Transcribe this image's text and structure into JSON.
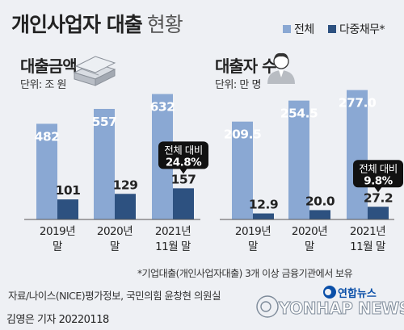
{
  "title": {
    "main": "개인사업자 대출",
    "sub": "현황"
  },
  "legend": [
    {
      "label": "전체",
      "color": "#8aa8d3"
    },
    {
      "label": "다중채무*",
      "color": "#2d5180"
    }
  ],
  "colors": {
    "total": "#8aa8d3",
    "multi": "#2d5180",
    "callout": "#111111"
  },
  "icons": {
    "loan": "money-stack-icon",
    "borrower": "person-icon",
    "logo": "yonhap-logo-icon"
  },
  "chart_data": [
    {
      "type": "bar",
      "title": "대출금액",
      "unit": "단위: 조 원",
      "categories": [
        "2019년 말",
        "2020년 말",
        "2021년 11월 말"
      ],
      "category_lines": [
        [
          "2019년",
          "말"
        ],
        [
          "2020년",
          "말"
        ],
        [
          "2021년",
          "11월 말"
        ]
      ],
      "series": [
        {
          "name": "전체",
          "values": [
            482,
            557,
            632
          ],
          "labels": [
            "482",
            "557",
            "632"
          ]
        },
        {
          "name": "다중채무*",
          "values": [
            101,
            129,
            157
          ],
          "labels": [
            "101",
            "129",
            "157"
          ]
        }
      ],
      "ylim": [
        0,
        700
      ],
      "callout": {
        "category": "2021년 11월 말",
        "series": "다중채무*",
        "line1": "전체 대비",
        "line2": "24.8%"
      }
    },
    {
      "type": "bar",
      "title": "대출자 수",
      "unit": "단위: 만 명",
      "categories": [
        "2019년 말",
        "2020년 말",
        "2021년 11월 말"
      ],
      "category_lines": [
        [
          "2019년",
          "말"
        ],
        [
          "2020년",
          "말"
        ],
        [
          "2021년",
          "11월 말"
        ]
      ],
      "series": [
        {
          "name": "전체",
          "values": [
            209.5,
            254.5,
            277.0
          ],
          "labels": [
            "209.5",
            "254.5",
            "277.0"
          ]
        },
        {
          "name": "다중채무*",
          "values": [
            12.9,
            20.0,
            27.2
          ],
          "labels": [
            "12.9",
            "20.0",
            "27.2"
          ]
        }
      ],
      "ylim": [
        0,
        300
      ],
      "callout": {
        "category": "2021년 11월 말",
        "series": "다중채무*",
        "line1": "전체 대비",
        "line2": "9.8%"
      }
    }
  ],
  "footnote": "*기업대출(개인사업자대출) 3개 이상 금융기관에서 보유",
  "source": "자료/나이스(NICE)평가정보, 국민의힘 윤창현 의원실",
  "reporter": "김영은 기자  20220118",
  "logo": {
    "korean": "연합뉴스",
    "english": "YONHAP NEWS"
  }
}
